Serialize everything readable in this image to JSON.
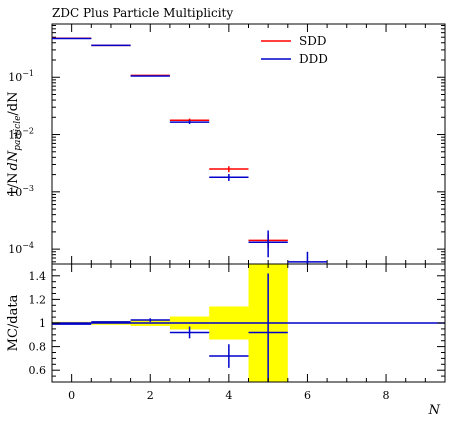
{
  "title": "ZDC Plus Particle Multiplicity",
  "colors": {
    "sdd": "#ff0000",
    "ddd": "#0000cc",
    "band": "#ffff00",
    "axis": "#000000"
  },
  "chart_data": [
    {
      "type": "line",
      "panel": "main",
      "title": "ZDC Plus Particle Multiplicity",
      "ylabel_parts": {
        "pre": "1/N",
        "mid": "dN",
        "sub": "particle",
        "post": "/dN"
      },
      "yscale": "log",
      "ylim": [
        5.5e-05,
        0.85
      ],
      "xlim": [
        -0.5,
        9.5
      ],
      "yticks": [
        {
          "value": 0.1,
          "base": "10",
          "exp": "−1"
        },
        {
          "value": 0.01,
          "base": "10",
          "exp": "−2"
        },
        {
          "value": 0.001,
          "base": "10",
          "exp": "−3"
        },
        {
          "value": 0.0001,
          "base": "10",
          "exp": "−4"
        }
      ],
      "legend": {
        "position": "top-right"
      },
      "series": [
        {
          "name": "SDD",
          "key": "sdd",
          "points": [
            {
              "xlo": -0.5,
              "xhi": 0.5,
              "y": 0.48,
              "elo": 0.0,
              "ehi": 0.0
            },
            {
              "xlo": 0.5,
              "xhi": 1.5,
              "y": 0.36,
              "elo": 0.0,
              "ehi": 0.0
            },
            {
              "xlo": 1.5,
              "xhi": 2.5,
              "y": 0.108,
              "elo": 0.0,
              "ehi": 0.0
            },
            {
              "xlo": 2.5,
              "xhi": 3.5,
              "y": 0.0178,
              "elo": 0.0012,
              "ehi": 0.0012
            },
            {
              "xlo": 3.5,
              "xhi": 4.5,
              "y": 0.0025,
              "elo": 0.0003,
              "ehi": 0.0003
            },
            {
              "xlo": 4.5,
              "xhi": 5.5,
              "y": 0.000142,
              "elo": 3.5e-05,
              "ehi": 4e-05
            }
          ]
        },
        {
          "name": "DDD",
          "key": "ddd",
          "points": [
            {
              "xlo": -0.5,
              "xhi": 0.5,
              "y": 0.475,
              "elo": 0.0,
              "ehi": 0.0
            },
            {
              "xlo": 0.5,
              "xhi": 1.5,
              "y": 0.36,
              "elo": 0.0,
              "ehi": 0.0
            },
            {
              "xlo": 1.5,
              "xhi": 2.5,
              "y": 0.105,
              "elo": 0.0,
              "ehi": 0.0
            },
            {
              "xlo": 2.5,
              "xhi": 3.5,
              "y": 0.0165,
              "elo": 0.0012,
              "ehi": 0.0012
            },
            {
              "xlo": 3.5,
              "xhi": 4.5,
              "y": 0.0018,
              "elo": 0.00025,
              "ehi": 0.00025
            },
            {
              "xlo": 4.5,
              "xhi": 5.5,
              "y": 0.000132,
              "elo": 6e-05,
              "ehi": 8e-05
            },
            {
              "xlo": 5.5,
              "xhi": 6.5,
              "y": 6e-05,
              "elo": 5e-06,
              "ehi": 3e-05
            }
          ]
        }
      ]
    },
    {
      "type": "line",
      "panel": "ratio",
      "ylabel": "MC/data",
      "xlabel": "N",
      "ylim": [
        0.5,
        1.5
      ],
      "xlim": [
        -0.5,
        9.5
      ],
      "yticks": [
        0.6,
        0.8,
        1.0,
        1.2,
        1.4
      ],
      "ytick_labels": [
        "0.6",
        "0.8",
        "1",
        "1.2",
        "1.4"
      ],
      "xticks": [
        0,
        2,
        4,
        6,
        8
      ],
      "xtick_labels": [
        "0",
        "2",
        "4",
        "6",
        "8"
      ],
      "band": [
        {
          "xlo": -0.5,
          "xhi": 0.5,
          "lo": 0.99,
          "hi": 1.01
        },
        {
          "xlo": 0.5,
          "xhi": 1.5,
          "lo": 0.985,
          "hi": 1.015
        },
        {
          "xlo": 1.5,
          "xhi": 2.5,
          "lo": 0.975,
          "hi": 1.025
        },
        {
          "xlo": 2.5,
          "xhi": 3.5,
          "lo": 0.945,
          "hi": 1.055
        },
        {
          "xlo": 3.5,
          "xhi": 4.5,
          "lo": 0.86,
          "hi": 1.14
        },
        {
          "xlo": 4.5,
          "xhi": 5.5,
          "lo": 0.5,
          "hi": 1.5
        }
      ],
      "ratio_points": [
        {
          "xlo": -0.5,
          "xhi": 0.5,
          "y": 0.99,
          "elo": 0.0,
          "ehi": 0.0
        },
        {
          "xlo": 0.5,
          "xhi": 1.5,
          "y": 1.01,
          "elo": 0.0,
          "ehi": 0.0
        },
        {
          "xlo": 1.5,
          "xhi": 2.5,
          "y": 1.025,
          "elo": 0.015,
          "ehi": 0.015
        },
        {
          "xlo": 2.5,
          "xhi": 3.5,
          "y": 0.92,
          "elo": 0.05,
          "ehi": 0.05
        },
        {
          "xlo": 3.5,
          "xhi": 4.5,
          "y": 0.72,
          "elo": 0.1,
          "ehi": 0.1
        },
        {
          "xlo": 4.5,
          "xhi": 5.5,
          "y": 0.92,
          "elo": 0.42,
          "ehi": 0.5
        }
      ],
      "ref_line": 1.0
    }
  ]
}
